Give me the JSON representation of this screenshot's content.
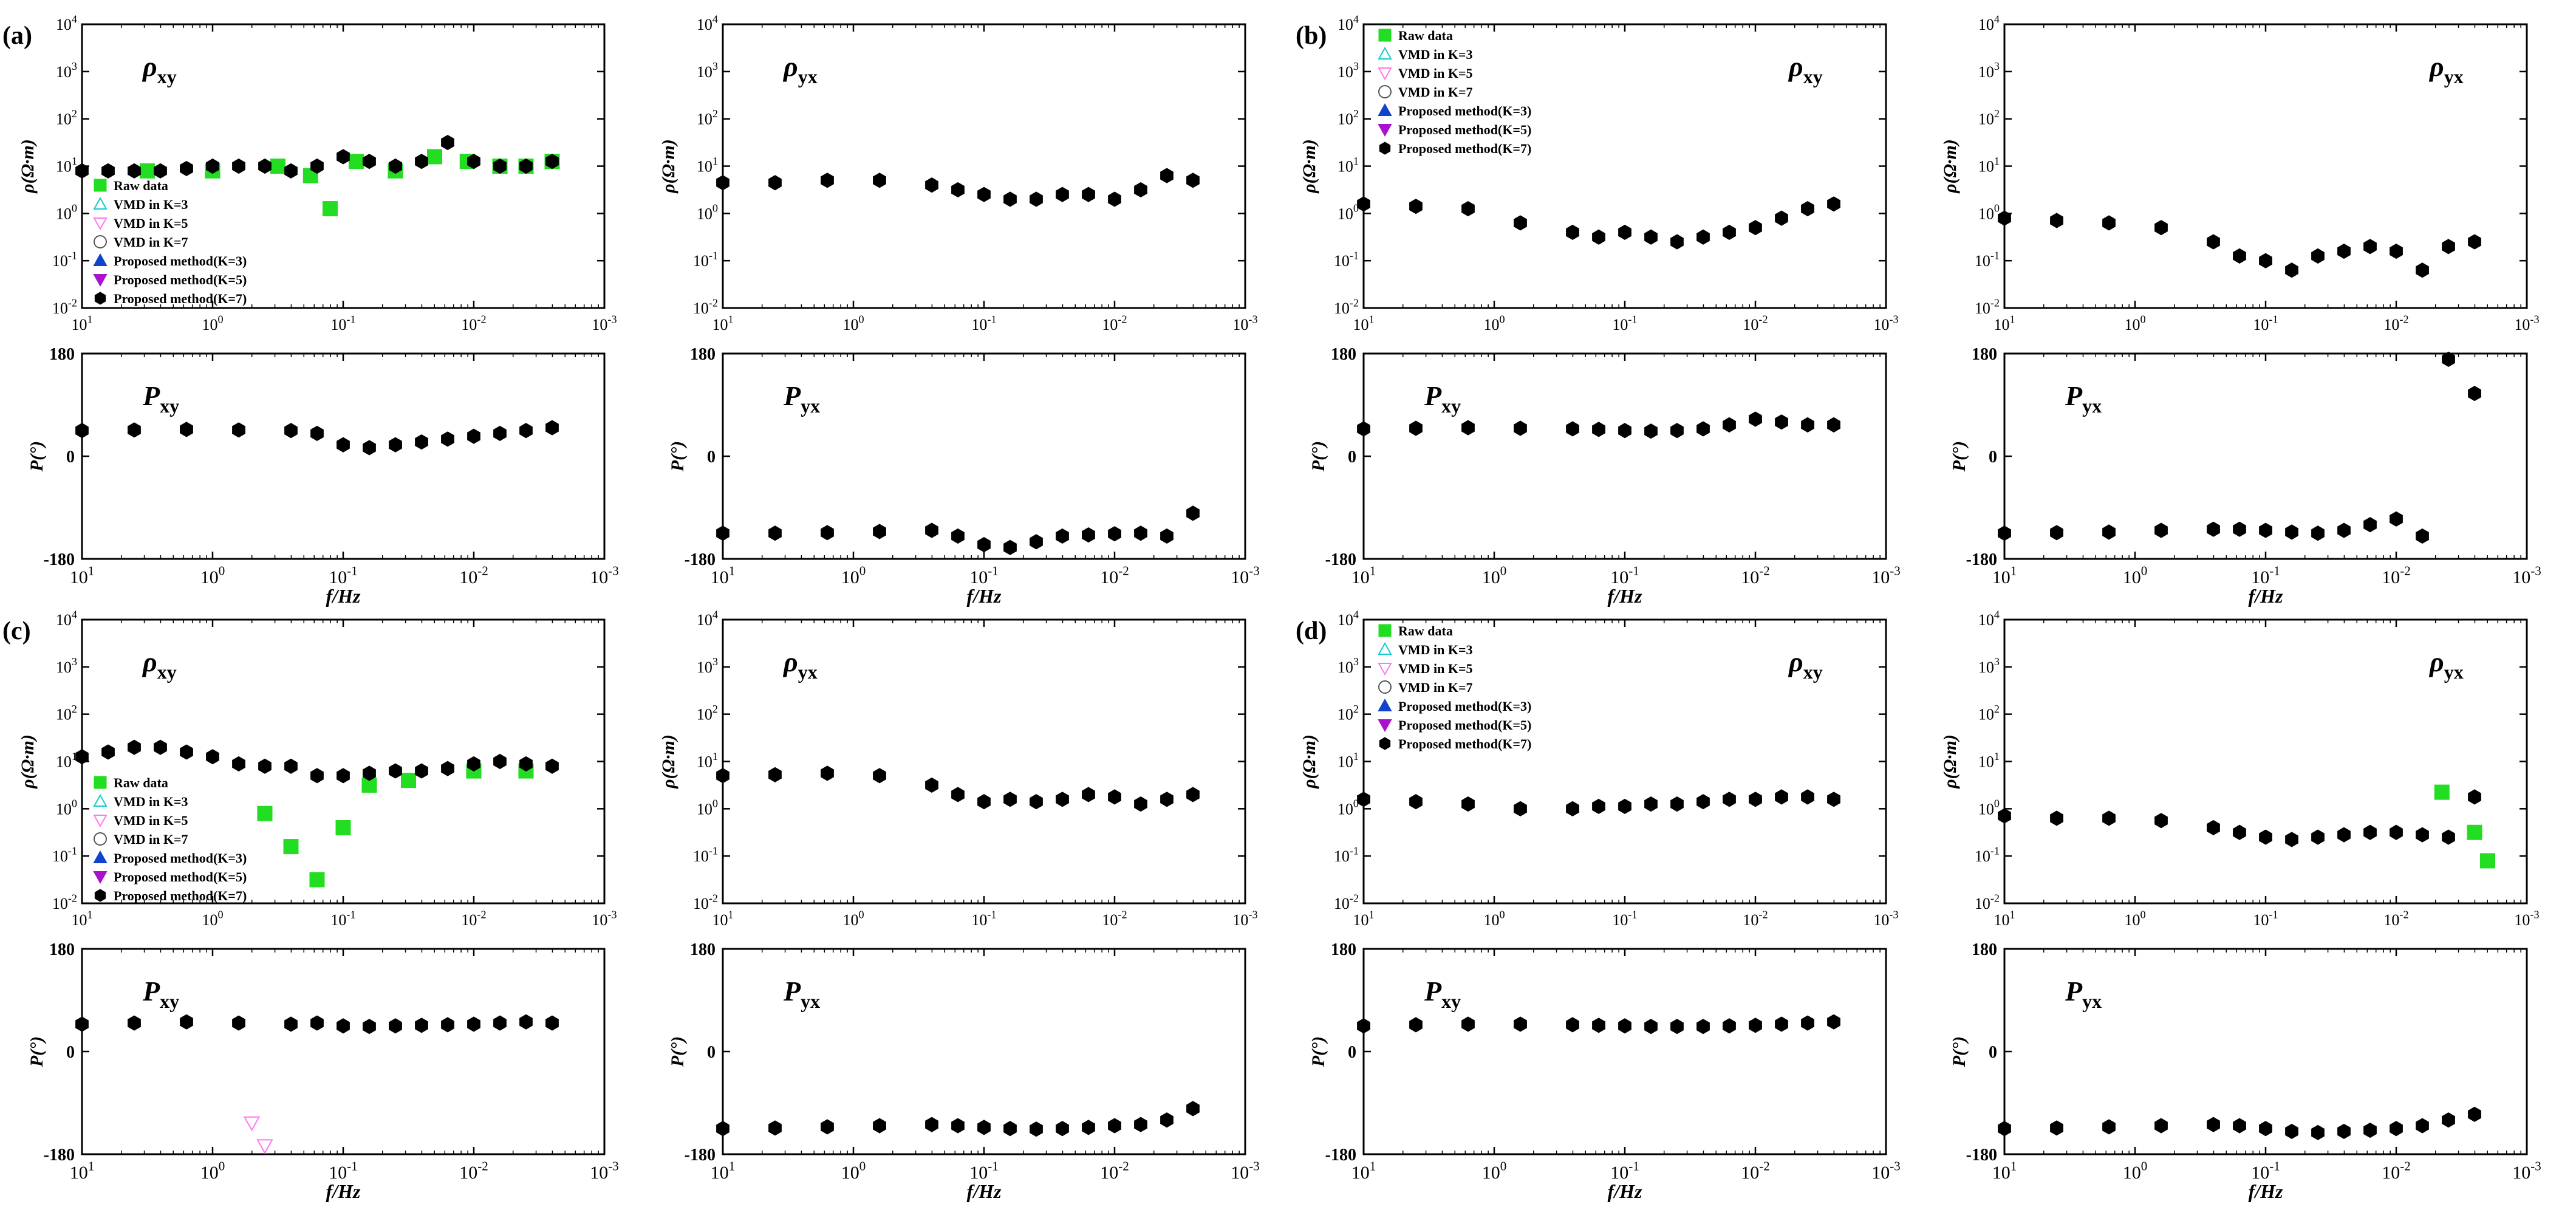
{
  "figure": {
    "panel_labels": [
      "(a)",
      "(b)",
      "(c)",
      "(d)"
    ],
    "legend_entries": [
      "Raw data",
      "VMD in K=3",
      "VMD in K=5",
      "VMD in K=7",
      "Proposed method(K=3)",
      "Proposed method(K=5)",
      "Proposed method(K=7)"
    ],
    "x_axis_label": "f/Hz",
    "rho_ylabel": "ρ(Ω·m)",
    "phase_ylabel": "P(°)",
    "x_ticks": [
      "10^1",
      "10^0",
      "10^-1",
      "10^-2",
      "10^-3"
    ],
    "rho_ticks": [
      "10^4",
      "10^3",
      "10^2",
      "10^1",
      "10^0",
      "10^-1",
      "10^-2"
    ],
    "phase_ticks": [
      "180",
      "0",
      "-180"
    ],
    "colors": {
      "raw": "#22dd22",
      "vmd3": "#11cccc",
      "vmd5": "#ff77ee",
      "vmd7": "#555555",
      "pm3": "#1144cc",
      "pm5": "#aa11cc",
      "pm7": "#000000"
    }
  },
  "chart_data": [
    {
      "type": "scatter",
      "panel": "a",
      "quantity": "rho_xy",
      "title": "ρxy",
      "xlim_log10": [
        1,
        -3
      ],
      "ylim_log10": [
        -2,
        4
      ],
      "series": [
        {
          "name": "Raw data",
          "x_log10": [
            0.5,
            0,
            -0.5,
            -0.75,
            -0.9,
            -1.1,
            -1.4,
            -1.7,
            -1.95,
            -2.2,
            -2.4,
            -2.6
          ],
          "y_log10": [
            0.9,
            0.9,
            1.0,
            0.8,
            0.1,
            1.1,
            0.9,
            1.2,
            1.1,
            1.0,
            1.0,
            1.1
          ]
        },
        {
          "name": "Proposed method(K=7)",
          "x_log10": [
            1,
            0.8,
            0.6,
            0.4,
            0.2,
            0,
            -0.2,
            -0.4,
            -0.6,
            -0.8,
            -1.0,
            -1.2,
            -1.4,
            -1.6,
            -1.8,
            -2.0,
            -2.2,
            -2.4,
            -2.6
          ],
          "y_log10": [
            0.9,
            0.9,
            0.9,
            0.9,
            0.95,
            1.0,
            1.0,
            1.0,
            0.9,
            1.0,
            1.2,
            1.1,
            1.0,
            1.1,
            1.5,
            1.1,
            1.0,
            1.0,
            1.1
          ]
        }
      ]
    },
    {
      "type": "scatter",
      "panel": "a",
      "quantity": "rho_yx",
      "title": "ρyx",
      "xlim_log10": [
        1,
        -3
      ],
      "ylim_log10": [
        -2,
        4
      ],
      "series": [
        {
          "name": "Proposed method(K=7)",
          "x_log10": [
            1,
            0.6,
            0.2,
            -0.2,
            -0.6,
            -0.8,
            -1.0,
            -1.2,
            -1.4,
            -1.6,
            -1.8,
            -2.0,
            -2.2,
            -2.4,
            -2.6
          ],
          "y_log10": [
            0.65,
            0.65,
            0.7,
            0.7,
            0.6,
            0.5,
            0.4,
            0.3,
            0.3,
            0.4,
            0.4,
            0.3,
            0.5,
            0.8,
            0.7
          ]
        }
      ]
    },
    {
      "type": "scatter",
      "panel": "b",
      "quantity": "rho_xy",
      "title": "ρxy",
      "xlim_log10": [
        1,
        -3
      ],
      "ylim_log10": [
        -2,
        4
      ],
      "series": [
        {
          "name": "Proposed method(K=7)",
          "x_log10": [
            1,
            0.6,
            0.2,
            -0.2,
            -0.6,
            -0.8,
            -1.0,
            -1.2,
            -1.4,
            -1.6,
            -1.8,
            -2.0,
            -2.2,
            -2.4,
            -2.6
          ],
          "y_log10": [
            0.2,
            0.15,
            0.1,
            -0.2,
            -0.4,
            -0.5,
            -0.4,
            -0.5,
            -0.6,
            -0.5,
            -0.4,
            -0.3,
            -0.1,
            0.1,
            0.2
          ]
        }
      ]
    },
    {
      "type": "scatter",
      "panel": "b",
      "quantity": "rho_yx",
      "title": "ρyx",
      "xlim_log10": [
        1,
        -3
      ],
      "ylim_log10": [
        -2,
        4
      ],
      "series": [
        {
          "name": "Proposed method(K=7)",
          "x_log10": [
            1,
            0.6,
            0.2,
            -0.2,
            -0.6,
            -0.8,
            -1.0,
            -1.2,
            -1.4,
            -1.6,
            -1.8,
            -2.0,
            -2.2,
            -2.4,
            -2.6
          ],
          "y_log10": [
            -0.1,
            -0.15,
            -0.2,
            -0.3,
            -0.6,
            -0.9,
            -1.0,
            -1.2,
            -0.9,
            -0.8,
            -0.7,
            -0.8,
            -1.2,
            -0.7,
            -0.6
          ]
        }
      ]
    },
    {
      "type": "scatter",
      "panel": "c",
      "quantity": "rho_xy",
      "title": "ρxy",
      "xlim_log10": [
        1,
        -3
      ],
      "ylim_log10": [
        -2,
        4
      ],
      "series": [
        {
          "name": "Raw data",
          "x_log10": [
            -0.4,
            -0.6,
            -0.8,
            -1.0,
            -1.2,
            -1.5,
            -2.0,
            -2.4
          ],
          "y_log10": [
            -0.1,
            -0.8,
            -1.5,
            -0.4,
            0.5,
            0.6,
            0.8,
            0.8
          ]
        },
        {
          "name": "Proposed method(K=7)",
          "x_log10": [
            1,
            0.8,
            0.6,
            0.4,
            0.2,
            0,
            -0.2,
            -0.4,
            -0.6,
            -0.8,
            -1.0,
            -1.2,
            -1.4,
            -1.6,
            -1.8,
            -2.0,
            -2.2,
            -2.4,
            -2.6
          ],
          "y_log10": [
            1.1,
            1.2,
            1.3,
            1.3,
            1.2,
            1.1,
            0.95,
            0.9,
            0.9,
            0.7,
            0.7,
            0.75,
            0.8,
            0.8,
            0.85,
            0.95,
            1.0,
            0.95,
            0.9
          ]
        }
      ]
    },
    {
      "type": "scatter",
      "panel": "c",
      "quantity": "rho_yx",
      "title": "ρyx",
      "xlim_log10": [
        1,
        -3
      ],
      "ylim_log10": [
        -2,
        4
      ],
      "series": [
        {
          "name": "Proposed method(K=7)",
          "x_log10": [
            1,
            0.6,
            0.2,
            -0.2,
            -0.6,
            -0.8,
            -1.0,
            -1.2,
            -1.4,
            -1.6,
            -1.8,
            -2.0,
            -2.2,
            -2.4,
            -2.6
          ],
          "y_log10": [
            0.7,
            0.72,
            0.75,
            0.7,
            0.5,
            0.3,
            0.15,
            0.2,
            0.15,
            0.2,
            0.3,
            0.25,
            0.1,
            0.2,
            0.3
          ]
        }
      ]
    },
    {
      "type": "scatter",
      "panel": "d",
      "quantity": "rho_xy",
      "title": "ρxy",
      "xlim_log10": [
        1,
        -3
      ],
      "ylim_log10": [
        -2,
        4
      ],
      "series": [
        {
          "name": "Proposed method(K=7)",
          "x_log10": [
            1,
            0.6,
            0.2,
            -0.2,
            -0.6,
            -0.8,
            -1.0,
            -1.2,
            -1.4,
            -1.6,
            -1.8,
            -2.0,
            -2.2,
            -2.4,
            -2.6
          ],
          "y_log10": [
            0.2,
            0.15,
            0.1,
            0.0,
            0.0,
            0.05,
            0.05,
            0.1,
            0.1,
            0.15,
            0.2,
            0.2,
            0.25,
            0.25,
            0.2
          ]
        }
      ]
    },
    {
      "type": "scatter",
      "panel": "d",
      "quantity": "rho_yx",
      "title": "ρyx",
      "xlim_log10": [
        1,
        -3
      ],
      "ylim_log10": [
        -2,
        4
      ],
      "series": [
        {
          "name": "Raw data",
          "x_log10": [
            -2.35,
            -2.6,
            -2.7
          ],
          "y_log10": [
            0.35,
            -0.5,
            -1.1
          ]
        },
        {
          "name": "Proposed method(K=7)",
          "x_log10": [
            1,
            0.6,
            0.2,
            -0.2,
            -0.6,
            -0.8,
            -1.0,
            -1.2,
            -1.4,
            -1.6,
            -1.8,
            -2.0,
            -2.2,
            -2.4,
            -2.6
          ],
          "y_log10": [
            -0.15,
            -0.2,
            -0.2,
            -0.25,
            -0.4,
            -0.5,
            -0.6,
            -0.65,
            -0.6,
            -0.55,
            -0.5,
            -0.5,
            -0.55,
            -0.6,
            0.25
          ]
        }
      ]
    },
    {
      "type": "scatter",
      "panel": "a",
      "quantity": "phase_xy",
      "title": "Pxy",
      "xlim_log10": [
        1,
        -3
      ],
      "ylim": [
        -180,
        180
      ],
      "series": [
        {
          "name": "Proposed method(K=7)",
          "x_log10": [
            1,
            0.6,
            0.2,
            -0.2,
            -0.6,
            -0.8,
            -1.0,
            -1.2,
            -1.4,
            -1.6,
            -1.8,
            -2.0,
            -2.2,
            -2.4,
            -2.6
          ],
          "y": [
            45,
            46,
            47,
            46,
            45,
            40,
            20,
            15,
            20,
            25,
            30,
            35,
            40,
            45,
            50
          ]
        }
      ]
    },
    {
      "type": "scatter",
      "panel": "a",
      "quantity": "phase_yx",
      "title": "Pyx",
      "xlim_log10": [
        1,
        -3
      ],
      "ylim": [
        -180,
        180
      ],
      "series": [
        {
          "name": "Proposed method(K=7)",
          "x_log10": [
            1,
            0.6,
            0.2,
            -0.2,
            -0.6,
            -0.8,
            -1.0,
            -1.2,
            -1.4,
            -1.6,
            -1.8,
            -2.0,
            -2.2,
            -2.4,
            -2.6
          ],
          "y": [
            -135,
            -135,
            -134,
            -132,
            -130,
            -140,
            -155,
            -160,
            -150,
            -140,
            -138,
            -136,
            -135,
            -140,
            -100
          ]
        }
      ]
    },
    {
      "type": "scatter",
      "panel": "b",
      "quantity": "phase_xy",
      "title": "Pxy",
      "xlim_log10": [
        1,
        -3
      ],
      "ylim": [
        -180,
        180
      ],
      "series": [
        {
          "name": "Proposed method(K=7)",
          "x_log10": [
            1,
            0.6,
            0.2,
            -0.2,
            -0.6,
            -0.8,
            -1.0,
            -1.2,
            -1.4,
            -1.6,
            -1.8,
            -2.0,
            -2.2,
            -2.4,
            -2.6
          ],
          "y": [
            48,
            49,
            50,
            49,
            48,
            47,
            45,
            44,
            45,
            48,
            55,
            65,
            60,
            55,
            55
          ]
        }
      ]
    },
    {
      "type": "scatter",
      "panel": "b",
      "quantity": "phase_yx",
      "title": "Pyx",
      "xlim_log10": [
        1,
        -3
      ],
      "ylim": [
        -180,
        180
      ],
      "series": [
        {
          "name": "Proposed method(K=7)",
          "x_log10": [
            1,
            0.6,
            0.2,
            -0.2,
            -0.6,
            -0.8,
            -1.0,
            -1.2,
            -1.4,
            -1.6,
            -1.8,
            -2.0,
            -2.2,
            -2.4,
            -2.6
          ],
          "y": [
            -135,
            -134,
            -133,
            -130,
            -128,
            -128,
            -130,
            -133,
            -135,
            -130,
            -120,
            -110,
            -140,
            170,
            110
          ]
        }
      ]
    },
    {
      "type": "scatter",
      "panel": "c",
      "quantity": "phase_xy",
      "title": "Pxy",
      "xlim_log10": [
        1,
        -3
      ],
      "ylim": [
        -180,
        180
      ],
      "series": [
        {
          "name": "VMD in K=5",
          "x_log10": [
            -0.3,
            -0.4
          ],
          "y": [
            -125,
            -165
          ]
        },
        {
          "name": "Proposed method(K=7)",
          "x_log10": [
            1,
            0.6,
            0.2,
            -0.2,
            -0.6,
            -0.8,
            -1.0,
            -1.2,
            -1.4,
            -1.6,
            -1.8,
            -2.0,
            -2.2,
            -2.4,
            -2.6
          ],
          "y": [
            48,
            50,
            52,
            50,
            48,
            50,
            45,
            44,
            45,
            46,
            47,
            48,
            50,
            52,
            50
          ]
        }
      ]
    },
    {
      "type": "scatter",
      "panel": "c",
      "quantity": "phase_yx",
      "title": "Pyx",
      "xlim_log10": [
        1,
        -3
      ],
      "ylim": [
        -180,
        180
      ],
      "series": [
        {
          "name": "Proposed method(K=7)",
          "x_log10": [
            1,
            0.6,
            0.2,
            -0.2,
            -0.6,
            -0.8,
            -1.0,
            -1.2,
            -1.4,
            -1.6,
            -1.8,
            -2.0,
            -2.2,
            -2.4,
            -2.6
          ],
          "y": [
            -135,
            -134,
            -132,
            -130,
            -128,
            -130,
            -133,
            -135,
            -136,
            -135,
            -133,
            -130,
            -128,
            -120,
            -100
          ]
        }
      ]
    },
    {
      "type": "scatter",
      "panel": "d",
      "quantity": "phase_xy",
      "title": "Pxy",
      "xlim_log10": [
        1,
        -3
      ],
      "ylim": [
        -180,
        180
      ],
      "series": [
        {
          "name": "Proposed method(K=7)",
          "x_log10": [
            1,
            0.6,
            0.2,
            -0.2,
            -0.6,
            -0.8,
            -1.0,
            -1.2,
            -1.4,
            -1.6,
            -1.8,
            -2.0,
            -2.2,
            -2.4,
            -2.6
          ],
          "y": [
            45,
            47,
            48,
            48,
            47,
            46,
            45,
            44,
            44,
            44,
            45,
            46,
            48,
            50,
            52
          ]
        }
      ]
    },
    {
      "type": "scatter",
      "panel": "d",
      "quantity": "phase_yx",
      "title": "Pyx",
      "xlim_log10": [
        1,
        -3
      ],
      "ylim": [
        -180,
        180
      ],
      "series": [
        {
          "name": "Proposed method(K=7)",
          "x_log10": [
            1,
            0.6,
            0.2,
            -0.2,
            -0.6,
            -0.8,
            -1.0,
            -1.2,
            -1.4,
            -1.6,
            -1.8,
            -2.0,
            -2.2,
            -2.4,
            -2.6
          ],
          "y": [
            -135,
            -134,
            -132,
            -130,
            -128,
            -130,
            -135,
            -140,
            -142,
            -140,
            -138,
            -135,
            -130,
            -120,
            -110
          ]
        }
      ]
    }
  ]
}
